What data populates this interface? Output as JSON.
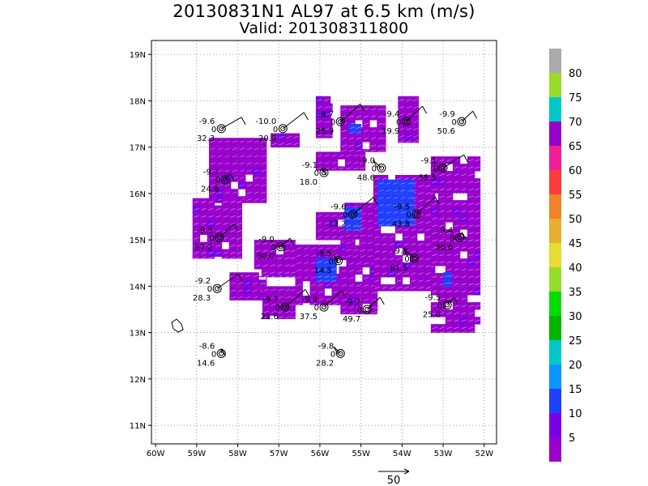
{
  "title": "20130831N1 AL97 at 6.5 km (m/s)",
  "subtitle": "Valid: 201308311800",
  "colors": {
    "scale": [
      "#9900cc",
      "#7a00e6",
      "#1e40ff",
      "#0a96ff",
      "#00c8c8",
      "#00b400",
      "#00dc00",
      "#96dc28",
      "#e6dc32",
      "#e6af2d",
      "#f08228",
      "#fa3c3c",
      "#f01e96",
      "#9600c8",
      "#00c8c8",
      "#96dc28",
      "#aaaaaa"
    ]
  },
  "chart_data": {
    "type": "heatmap",
    "title": "20130831N1 AL97 at 6.5 km (m/s)",
    "subtitle": "Valid: 201308311800",
    "xlabel": "",
    "ylabel": "",
    "xlim": [
      -60.1,
      -51.7
    ],
    "ylim": [
      10.6,
      19.3
    ],
    "x_ticks": [
      -60,
      -59,
      -58,
      -57,
      -56,
      -55,
      -54,
      -53,
      -52
    ],
    "x_tick_labels": [
      "60W",
      "59W",
      "58W",
      "57W",
      "56W",
      "55W",
      "54W",
      "53W",
      "52W"
    ],
    "y_ticks": [
      11,
      12,
      13,
      14,
      15,
      16,
      17,
      18,
      19
    ],
    "y_tick_labels": [
      "11N",
      "12N",
      "13N",
      "14N",
      "15N",
      "16N",
      "17N",
      "18N",
      "19N"
    ],
    "grid": true,
    "colorbar": {
      "labels": [
        "5",
        "10",
        "15",
        "20",
        "25",
        "30",
        "35",
        "40",
        "45",
        "50",
        "55",
        "60",
        "65",
        "70",
        "75",
        "80"
      ]
    },
    "reference_vector": {
      "label": "50"
    },
    "dropsondes": [
      {
        "lon": -58.4,
        "lat": 17.4,
        "temp": "-9.6",
        "zero": "0",
        "wind": "32.3"
      },
      {
        "lon": -56.9,
        "lat": 17.4,
        "temp": "-10.0",
        "zero": "0",
        "wind": "20.9"
      },
      {
        "lon": -55.5,
        "lat": 17.55,
        "temp": "-9.7",
        "zero": "0",
        "wind": "25.9"
      },
      {
        "lon": -53.9,
        "lat": 17.55,
        "temp": "-9.4",
        "zero": "0",
        "wind": "19.9"
      },
      {
        "lon": -52.55,
        "lat": 17.55,
        "temp": "-9.9",
        "zero": "0",
        "wind": "50.6"
      },
      {
        "lon": -58.3,
        "lat": 16.3,
        "temp": "-9.7",
        "zero": "0",
        "wind": "24.8"
      },
      {
        "lon": -55.9,
        "lat": 16.45,
        "temp": "-9.1",
        "zero": "0",
        "wind": "18.0"
      },
      {
        "lon": -54.5,
        "lat": 16.55,
        "temp": "-9.0",
        "zero": "0",
        "wind": "48.6"
      },
      {
        "lon": -53.0,
        "lat": 16.55,
        "temp": "-9.1",
        "zero": "0",
        "wind": "55.5"
      },
      {
        "lon": -55.2,
        "lat": 15.55,
        "temp": "-9.6",
        "zero": "0",
        "wind": "13.2"
      },
      {
        "lon": -53.65,
        "lat": 15.55,
        "temp": "-9.5",
        "zero": "0",
        "wind": "43.8"
      },
      {
        "lon": -58.45,
        "lat": 15.05,
        "temp": "-9.3",
        "zero": "0",
        "wind": "57.2"
      },
      {
        "lon": -56.95,
        "lat": 14.85,
        "temp": "-9.0",
        "zero": "0",
        "wind": "30.0"
      },
      {
        "lon": -52.6,
        "lat": 15.05,
        "temp": "-9.4",
        "zero": "0",
        "wind": "36.6"
      },
      {
        "lon": -55.55,
        "lat": 14.55,
        "temp": "-9.5",
        "zero": "0",
        "wind": "14.5"
      },
      {
        "lon": -53.7,
        "lat": 14.6,
        "temp": "-9.3",
        "zero": "0",
        "wind": "61.5"
      },
      {
        "lon": -58.5,
        "lat": 13.95,
        "temp": "-9.2",
        "zero": "0",
        "wind": "28.3"
      },
      {
        "lon": -56.85,
        "lat": 13.55,
        "temp": "-9.7",
        "zero": "0",
        "wind": "21.6"
      },
      {
        "lon": -55.9,
        "lat": 13.55,
        "temp": "-9.4",
        "zero": "0",
        "wind": "37.5"
      },
      {
        "lon": -54.85,
        "lat": 13.5,
        "temp": "-9.7",
        "zero": "0",
        "wind": "49.7"
      },
      {
        "lon": -52.9,
        "lat": 13.6,
        "temp": "-9.5",
        "zero": "0",
        "wind": "25.0"
      },
      {
        "lon": -58.4,
        "lat": 12.55,
        "temp": "-8.6",
        "zero": "0",
        "wind": "14.6"
      },
      {
        "lon": -55.5,
        "lat": 12.55,
        "temp": "-9.8",
        "zero": "0",
        "wind": "28.2"
      }
    ],
    "color_fields": [
      {
        "name": "west-arc",
        "value": 8,
        "rects": [
          [
            -58.7,
            -57.3,
            15.8,
            17.2
          ],
          [
            -59.1,
            -57.9,
            14.6,
            15.9
          ],
          [
            -57.6,
            -56.6,
            14.2,
            15.0
          ],
          [
            -58.2,
            -57.3,
            13.7,
            14.3
          ],
          [
            -57.4,
            -56.6,
            13.3,
            14.0
          ]
        ]
      },
      {
        "name": "south-arc",
        "value": 8,
        "rects": [
          [
            -56.6,
            -55.2,
            13.6,
            14.9
          ],
          [
            -55.5,
            -54.6,
            13.4,
            15.2
          ],
          [
            -56.1,
            -55.4,
            15.0,
            15.6
          ]
        ]
      },
      {
        "name": "north-patches",
        "value": 8,
        "rects": [
          [
            -56.1,
            -55.7,
            17.2,
            18.1
          ],
          [
            -55.5,
            -54.4,
            16.9,
            17.9
          ],
          [
            -54.1,
            -53.6,
            17.1,
            18.1
          ],
          [
            -57.2,
            -56.5,
            17.0,
            17.3
          ]
        ]
      },
      {
        "name": "inner-band",
        "value": 8,
        "rects": [
          [
            -56.1,
            -54.9,
            16.5,
            16.9
          ],
          [
            -55.4,
            -54.7,
            14.6,
            15.8
          ]
        ]
      },
      {
        "name": "east-band",
        "value": 8,
        "rects": [
          [
            -54.7,
            -53.2,
            13.9,
            16.4
          ],
          [
            -53.3,
            -52.1,
            13.0,
            16.8
          ]
        ]
      },
      {
        "name": "blue-core",
        "value": 13,
        "rects": [
          [
            -54.6,
            -53.7,
            15.3,
            16.3
          ],
          [
            -55.4,
            -55.0,
            15.2,
            15.7
          ],
          [
            -56.1,
            -55.6,
            14.1,
            14.6
          ],
          [
            -55.3,
            -55.0,
            17.3,
            17.5
          ],
          [
            -53.0,
            -52.8,
            14.0,
            14.3
          ]
        ]
      }
    ]
  }
}
